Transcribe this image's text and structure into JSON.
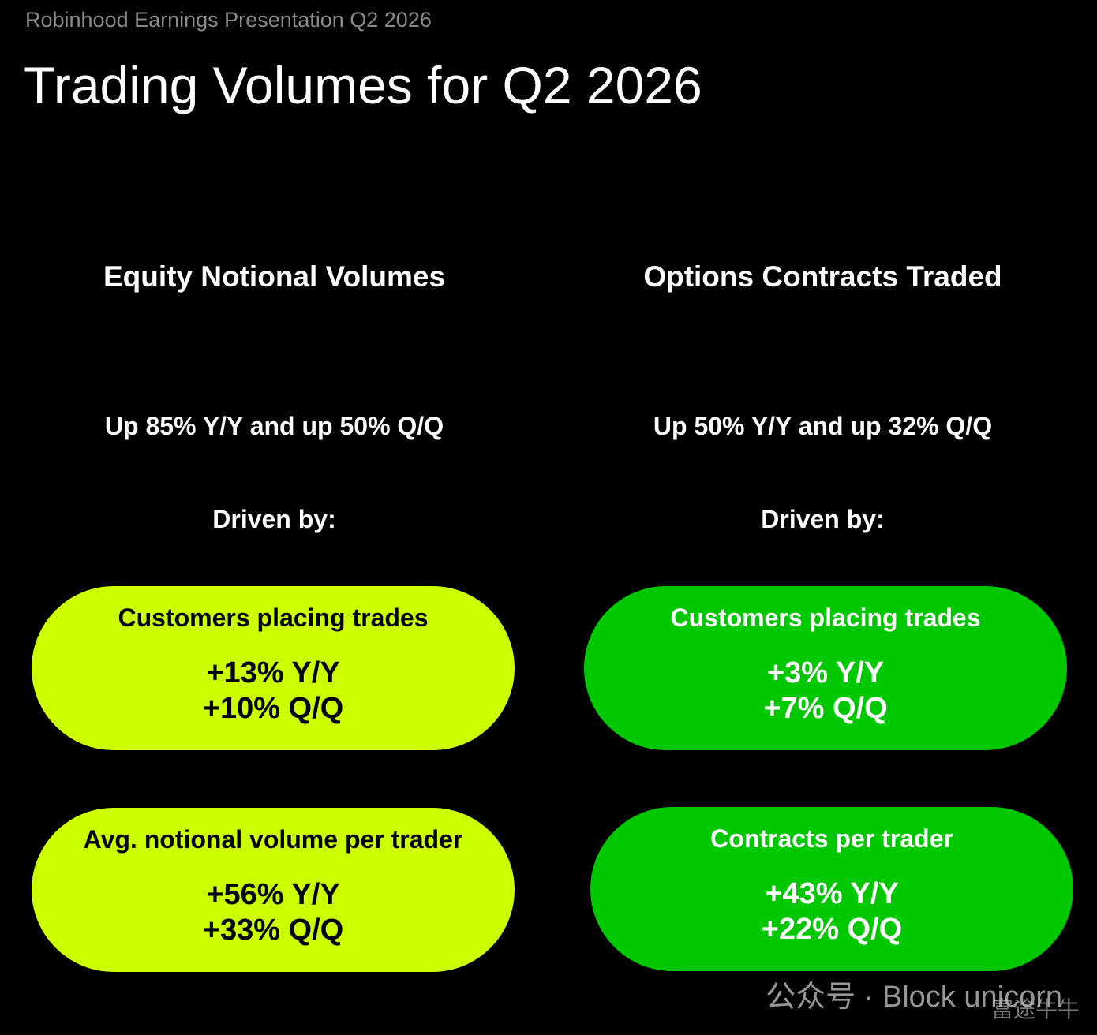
{
  "header": {
    "subtitle": "Robinhood Earnings Presentation Q2 2026",
    "title": "Trading Volumes for Q2 2026"
  },
  "columns": [
    {
      "heading": "Equity Notional Volumes",
      "summary": "Up 85% Y/Y and up 50% Q/Q",
      "driver_label": "Driven by:",
      "drivers": [
        {
          "label": "Customers placing trades",
          "lines": [
            "+13% Y/Y",
            "+10% Q/Q"
          ]
        },
        {
          "label": "Avg. notional volume per trader",
          "lines": [
            "+56% Y/Y",
            "+33% Q/Q"
          ]
        }
      ]
    },
    {
      "heading": "Options Contracts Traded",
      "summary": "Up 50% Y/Y and up 32% Q/Q",
      "driver_label": "Driven by:",
      "drivers": [
        {
          "label": "Customers placing trades",
          "lines": [
            "+3% Y/Y",
            "+7% Q/Q"
          ]
        },
        {
          "label": "Contracts per trader",
          "lines": [
            "+43% Y/Y",
            "+22% Q/Q"
          ]
        }
      ]
    }
  ],
  "watermark": {
    "text": "公众号 · Block unicorn",
    "logo_text": "富途牛牛"
  }
}
